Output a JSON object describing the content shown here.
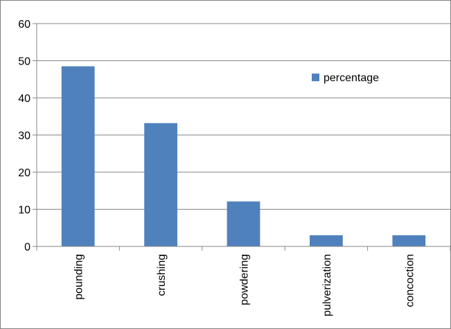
{
  "chart_data": {
    "type": "bar",
    "title": "",
    "xlabel": "",
    "ylabel": "",
    "categories": [
      "pounding",
      "crushing",
      "powdering",
      "pulverization",
      "concoction"
    ],
    "series": [
      {
        "name": "percentage",
        "values": [
          48.5,
          33.2,
          12.1,
          3.0,
          3.0
        ]
      }
    ],
    "ylim": [
      0,
      60
    ],
    "yticks": [
      0,
      10,
      20,
      30,
      40,
      50,
      60
    ],
    "grid": true,
    "legend_position": "top-right",
    "colors": {
      "bar": "#4f81bd",
      "grid": "#868686",
      "axis": "#868686"
    }
  }
}
